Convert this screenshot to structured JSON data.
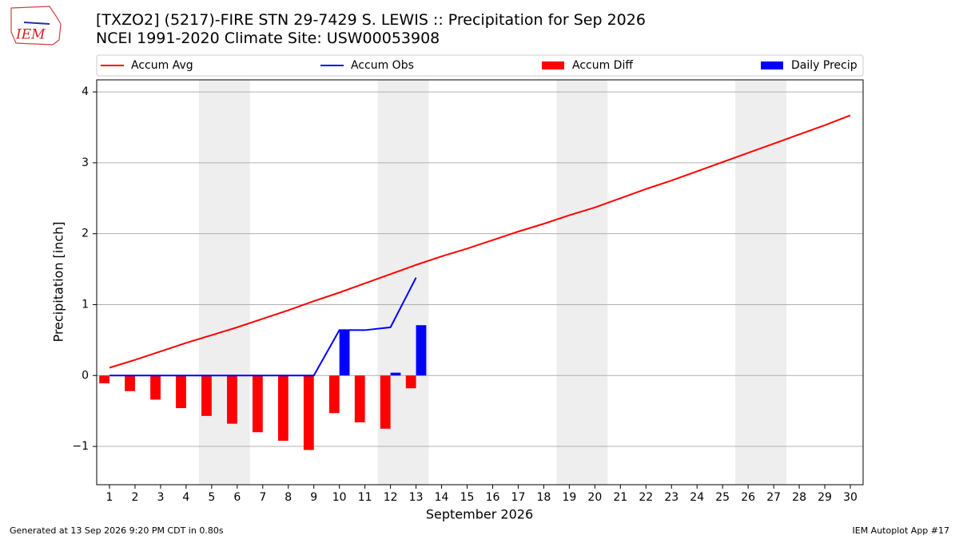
{
  "chart_data": {
    "type": "combo",
    "title": "[TXZO2] (5217)-FIRE STN 29-7429 S. LEWIS :: Precipitation for Sep 2026",
    "subtitle": "NCEI 1991-2020 Climate Site: USW00053908",
    "logo_text": "IEM",
    "x_label": "September 2026",
    "y_label": "Precipitation [inch]",
    "footer_left": "Generated at 13 Sep 2026 9:20 PM CDT in 0.80s",
    "footer_right": "IEM Autoplot App #17",
    "x": [
      1,
      2,
      3,
      4,
      5,
      6,
      7,
      8,
      9,
      10,
      11,
      12,
      13,
      14,
      15,
      16,
      17,
      18,
      19,
      20,
      21,
      22,
      23,
      24,
      25,
      26,
      27,
      28,
      29,
      30
    ],
    "xlim": [
      0.5,
      30.5
    ],
    "xticks": [
      1,
      2,
      3,
      4,
      5,
      6,
      7,
      8,
      9,
      10,
      11,
      12,
      13,
      14,
      15,
      16,
      17,
      18,
      19,
      20,
      21,
      22,
      23,
      24,
      25,
      26,
      27,
      28,
      29,
      30
    ],
    "ylim": [
      -1.54,
      4.17
    ],
    "yticks": [
      {
        "value": -1,
        "label": "−1"
      },
      0,
      1,
      2,
      3,
      4
    ],
    "grid": true,
    "legend": "top",
    "bar_width": 0.4,
    "shaded_ranges": [
      [
        4.5,
        6.5
      ],
      [
        11.5,
        13.5
      ],
      [
        18.5,
        20.5
      ],
      [
        25.5,
        27.5
      ]
    ],
    "shade_color": "#eeeeee",
    "series": [
      {
        "name": "Accum Avg",
        "type": "line",
        "color": "#ff0000",
        "values": [
          0.11,
          0.22,
          0.34,
          0.46,
          0.57,
          0.68,
          0.8,
          0.92,
          1.05,
          1.17,
          1.3,
          1.43,
          1.56,
          1.68,
          1.79,
          1.91,
          2.03,
          2.14,
          2.26,
          2.37,
          2.5,
          2.63,
          2.75,
          2.88,
          3.01,
          3.14,
          3.27,
          3.4,
          3.53,
          3.67
        ]
      },
      {
        "name": "Accum Obs",
        "type": "line",
        "color": "#0000ff",
        "values": [
          0,
          0,
          0,
          0,
          0,
          0,
          0,
          0,
          0,
          0.64,
          0.64,
          0.68,
          1.38,
          null,
          null,
          null,
          null,
          null,
          null,
          null,
          null,
          null,
          null,
          null,
          null,
          null,
          null,
          null,
          null,
          null
        ]
      },
      {
        "name": "Accum Diff",
        "type": "bar",
        "side": "left",
        "color": "#ff0000",
        "values": [
          -0.11,
          -0.22,
          -0.34,
          -0.46,
          -0.57,
          -0.68,
          -0.8,
          -0.92,
          -1.05,
          -0.53,
          -0.66,
          -0.75,
          -0.18,
          null,
          null,
          null,
          null,
          null,
          null,
          null,
          null,
          null,
          null,
          null,
          null,
          null,
          null,
          null,
          null,
          null
        ]
      },
      {
        "name": "Daily Precip",
        "type": "bar",
        "side": "right",
        "color": "#0000ff",
        "values": [
          0,
          0,
          0,
          0,
          0,
          0,
          0,
          0,
          0,
          0.64,
          0,
          0.04,
          0.71,
          null,
          null,
          null,
          null,
          null,
          null,
          null,
          null,
          null,
          null,
          null,
          null,
          null,
          null,
          null,
          null,
          null
        ]
      }
    ]
  }
}
